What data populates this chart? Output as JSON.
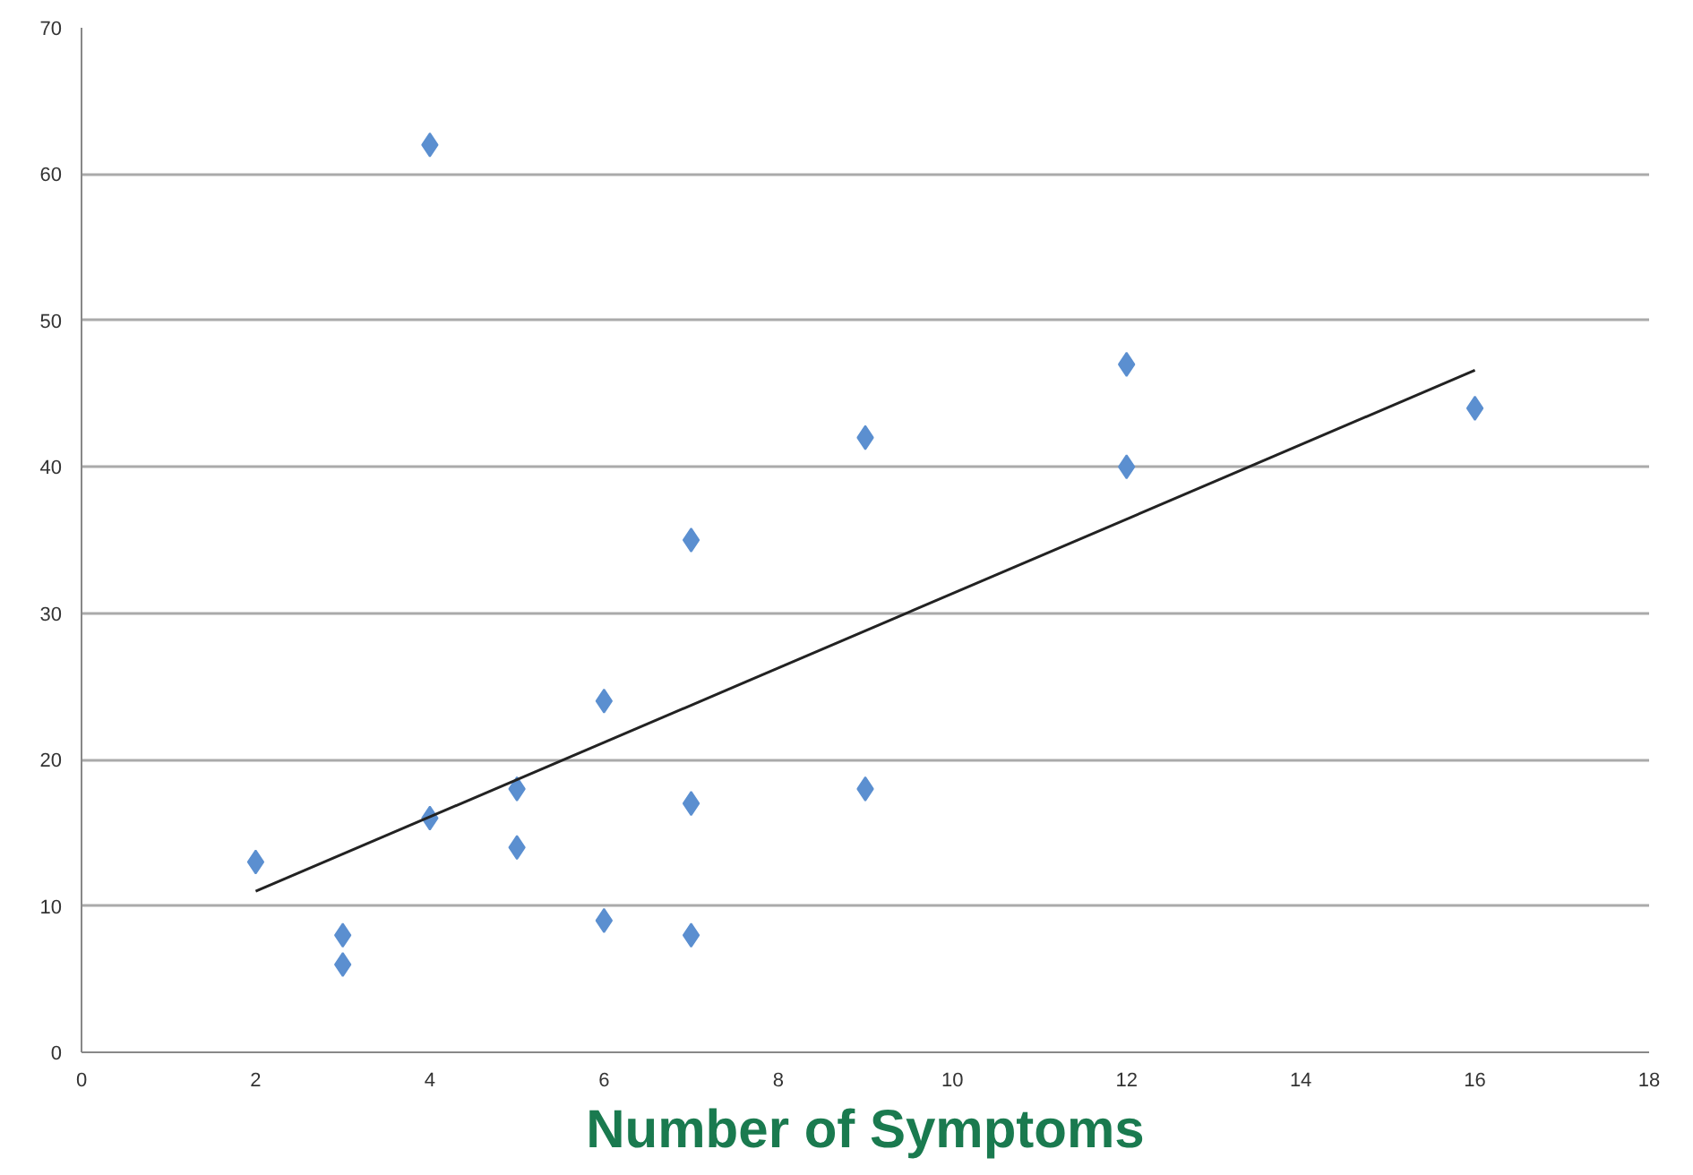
{
  "chart_data": {
    "type": "scatter",
    "xlabel": "Number of Symptoms",
    "xlim": [
      0,
      18
    ],
    "xticks": [
      0,
      2,
      4,
      6,
      8,
      10,
      12,
      14,
      16,
      18
    ],
    "ylim": [
      0,
      70
    ],
    "yticks": [
      0,
      10,
      20,
      30,
      40,
      50,
      60,
      70
    ],
    "grid": "y",
    "series": [
      {
        "color": "#5b8fd0",
        "marker": "diamond",
        "x": [
          2,
          3,
          3,
          4,
          4,
          5,
          5,
          6,
          6,
          7,
          7,
          7,
          9,
          9,
          12,
          12,
          16
        ],
        "values": [
          13,
          8,
          6,
          62,
          16,
          18,
          14,
          24,
          9,
          35,
          17,
          8,
          42,
          18,
          47,
          40,
          44
        ]
      },
      {
        "type": "line",
        "color": "#222222",
        "x": [
          2,
          16
        ],
        "values": [
          11,
          46.6
        ]
      }
    ]
  }
}
